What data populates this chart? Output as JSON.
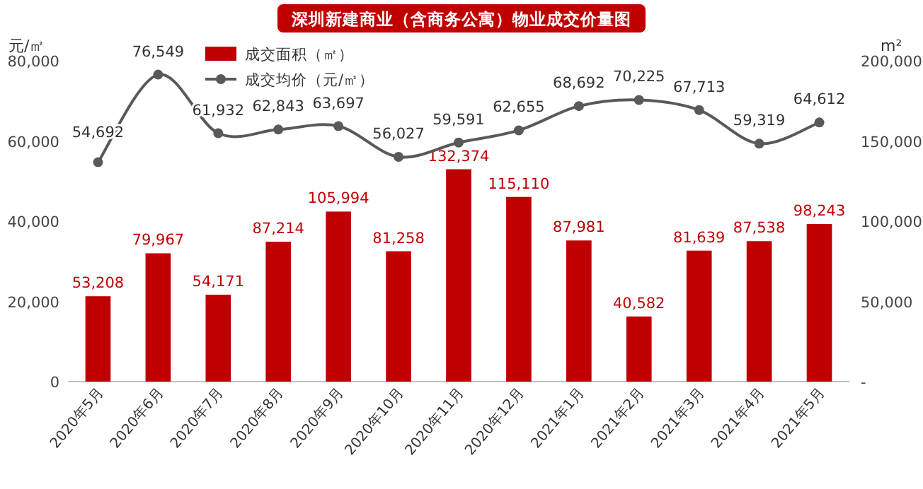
{
  "chart_data": {
    "type": "bar",
    "title": "深圳新建商业（含商务公寓）物业成交价量图",
    "ylabel": "元/㎡",
    "y2label": "m²",
    "categories": [
      "2020年5月",
      "2020年6月",
      "2020年7月",
      "2020年8月",
      "2020年9月",
      "2020年10月",
      "2020年11月",
      "2020年12月",
      "2021年1月",
      "2021年2月",
      "2021年3月",
      "2021年4月",
      "2021年5月"
    ],
    "series": [
      {
        "name": "成交面积（㎡）",
        "axis": "y2",
        "color": "#c00000",
        "values": [
          53208,
          79967,
          54171,
          87214,
          105994,
          81258,
          132374,
          115110,
          87981,
          40582,
          81639,
          87538,
          98243
        ],
        "value_labels": [
          "53,208",
          "79,967",
          "54,171",
          "87,214",
          "105,994",
          "81,258",
          "132,374",
          "115,110",
          "87,981",
          "40,582",
          "81,639",
          "87,538",
          "98,243"
        ]
      },
      {
        "name": "成交均价（元/㎡）",
        "type": "line",
        "axis": "y",
        "color": "#595959",
        "marker": "circle",
        "line_style": "solid",
        "values": [
          54692,
          76549,
          61932,
          62843,
          63697,
          56027,
          59591,
          62655,
          68692,
          70225,
          67713,
          59319,
          64612
        ],
        "value_labels": [
          "54,692",
          "76,549",
          "61,932",
          "62,843",
          "63,697",
          "56,027",
          "59,591",
          "62,655",
          "68,692",
          "70,225",
          "67,713",
          "59,319",
          "64,612"
        ]
      }
    ],
    "ylim": [
      0,
      80000
    ],
    "yticks": [
      0,
      {
        "value": 20000,
        "label": "20,000"
      },
      {
        "value": 40000,
        "label": "40,000"
      },
      {
        "value": 60000,
        "label": "60,000"
      },
      {
        "value": 80000,
        "label": "80,000"
      }
    ],
    "y2lim": [
      0,
      200000
    ],
    "y2ticks": [
      {
        "value": 0,
        "label": "-"
      },
      {
        "value": 50000,
        "label": "50,000"
      },
      {
        "value": 100000,
        "label": "100,000"
      },
      {
        "value": 150000,
        "label": "150,000"
      },
      {
        "value": 200000,
        "label": "200,000"
      }
    ],
    "legend": "top left"
  }
}
